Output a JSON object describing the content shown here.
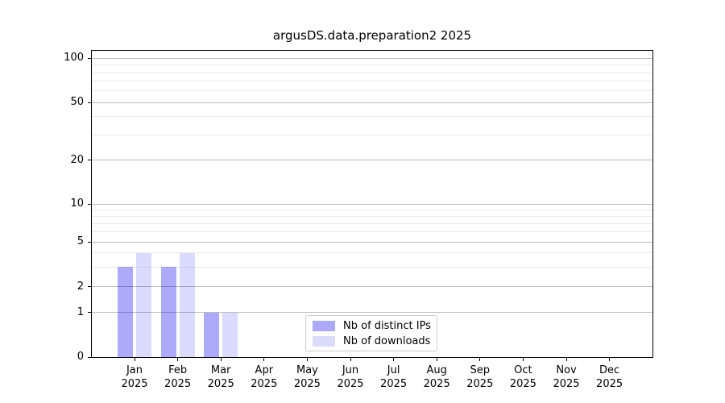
{
  "title": "argusDS.data.preparation2 2025",
  "chart_data": {
    "type": "bar",
    "title": "argusDS.data.preparation2 2025",
    "categories": [
      "Jan",
      "Feb",
      "Mar",
      "Apr",
      "May",
      "Jun",
      "Jul",
      "Aug",
      "Sep",
      "Oct",
      "Nov",
      "Dec"
    ],
    "year_label": "2025",
    "series": [
      {
        "name": "Nb of distinct IPs",
        "swatch": "#aaaaf8",
        "fill": "rgba(0,0,238,0.33)",
        "values": [
          3,
          3,
          1,
          0,
          0,
          0,
          0,
          0,
          0,
          0,
          0,
          0
        ]
      },
      {
        "name": "Nb of downloads",
        "swatch": "#dbdbfa",
        "fill": "rgba(0,0,238,0.14)",
        "values": [
          4,
          4,
          1,
          0,
          0,
          0,
          0,
          0,
          0,
          0,
          0,
          0
        ]
      }
    ],
    "yticks": [
      0,
      1,
      2,
      5,
      10,
      20,
      50,
      100
    ],
    "minor_yticks": [
      3,
      4,
      6,
      7,
      8,
      9,
      30,
      40,
      60,
      70,
      80,
      90
    ],
    "ylim": [
      0,
      110
    ],
    "xlabel": "",
    "ylabel": "",
    "scale": "log-like with zero baseline",
    "grid": true,
    "legend_position": "lower center",
    "colors": {
      "major_grid": "#bdbdbd",
      "minor_grid": "#eaeaea",
      "axis": "#000000",
      "text": "#000000",
      "background": "#ffffff"
    }
  }
}
